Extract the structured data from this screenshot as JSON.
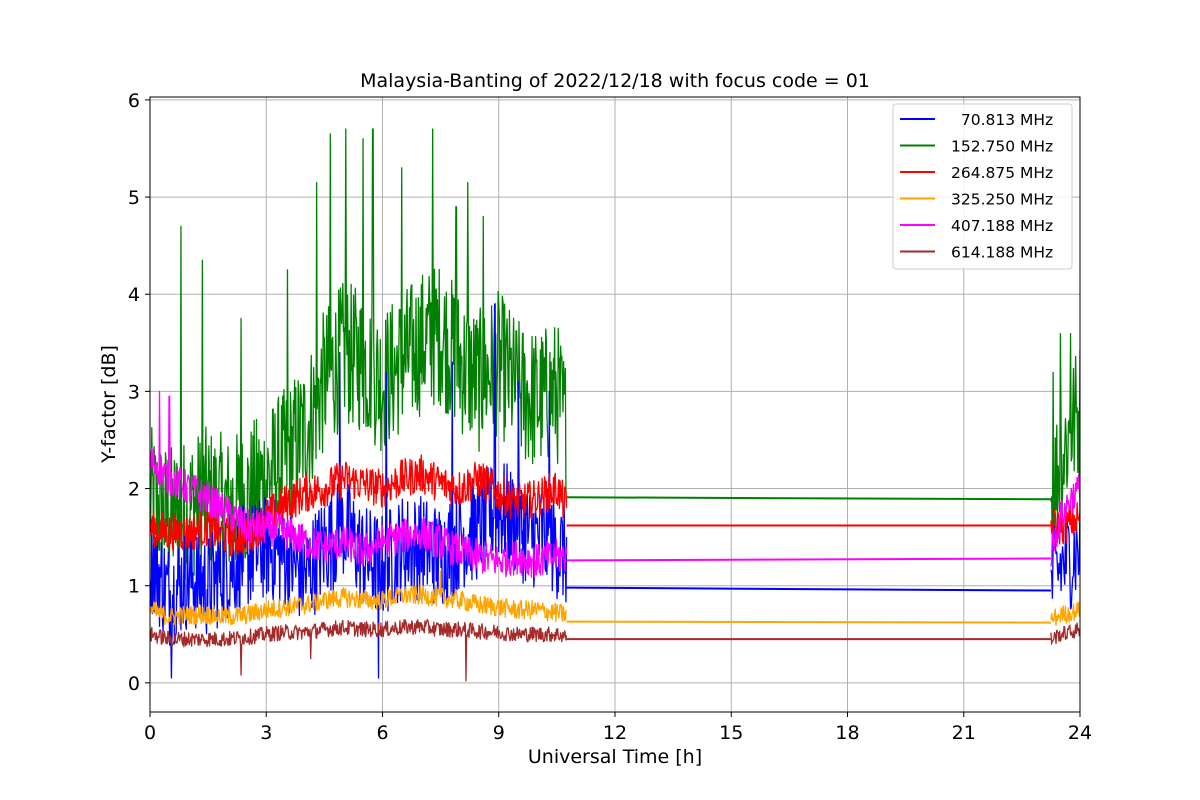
{
  "chart_data": {
    "type": "line",
    "title": "Malaysia-Banting of 2022/12/18 with focus code = 01",
    "xlabel": "Universal Time [h]",
    "ylabel": "Y-factor [dB]",
    "xlim": [
      0,
      24
    ],
    "ylim": [
      -0.3,
      6.03
    ],
    "xticks": [
      "0",
      "3",
      "6",
      "9",
      "12",
      "15",
      "18",
      "21",
      "24"
    ],
    "yticks": [
      "0",
      "1",
      "2",
      "3",
      "4",
      "5",
      "6"
    ],
    "grid": true,
    "legend_position": "top-right",
    "data_gap_hours": [
      10.75,
      23.25
    ],
    "series": [
      {
        "name": "  70.813 MHz",
        "color": "#0000ff",
        "points": [
          [
            0,
            1.3
          ],
          [
            0.5,
            0.9
          ],
          [
            1,
            1.1
          ],
          [
            1.5,
            1.0
          ],
          [
            2,
            1.2
          ],
          [
            2.5,
            1.3
          ],
          [
            3,
            1.4
          ],
          [
            3.5,
            1.3
          ],
          [
            4,
            1.1
          ],
          [
            4.5,
            1.4
          ],
          [
            5,
            1.6
          ],
          [
            5.5,
            1.3
          ],
          [
            6,
            1.2
          ],
          [
            6.5,
            1.4
          ],
          [
            7,
            1.4
          ],
          [
            7.5,
            1.3
          ],
          [
            8,
            1.5
          ],
          [
            8.5,
            1.6
          ],
          [
            9,
            1.8
          ],
          [
            9.5,
            1.6
          ],
          [
            10,
            1.5
          ],
          [
            10.5,
            1.4
          ],
          [
            10.75,
            1.3
          ]
        ],
        "gap_line": [
          [
            10.75,
            0.98
          ],
          [
            23.25,
            0.95
          ]
        ],
        "after": [
          [
            23.25,
            1.0
          ],
          [
            23.5,
            1.2
          ],
          [
            23.75,
            1.3
          ],
          [
            24,
            1.4
          ]
        ],
        "noise_amplitude": 0.55,
        "spikes": [
          [
            0.55,
            0.05
          ],
          [
            4.9,
            3.4
          ],
          [
            5.9,
            0.05
          ],
          [
            6.1,
            3.2
          ],
          [
            7.8,
            3.3
          ],
          [
            8.9,
            3.9
          ],
          [
            9.5,
            3.1
          ],
          [
            10.3,
            3.0
          ]
        ]
      },
      {
        "name": "152.750 MHz",
        "color": "#008000",
        "points": [
          [
            0,
            1.9
          ],
          [
            0.5,
            1.7
          ],
          [
            1,
            1.8
          ],
          [
            1.5,
            1.9
          ],
          [
            2,
            1.8
          ],
          [
            2.5,
            1.9
          ],
          [
            3,
            2.1
          ],
          [
            3.5,
            2.3
          ],
          [
            4,
            2.6
          ],
          [
            4.5,
            3.1
          ],
          [
            5,
            3.4
          ],
          [
            5.5,
            3.3
          ],
          [
            6,
            3.1
          ],
          [
            6.5,
            3.3
          ],
          [
            7,
            3.5
          ],
          [
            7.5,
            3.6
          ],
          [
            8,
            3.3
          ],
          [
            8.5,
            3.1
          ],
          [
            9,
            3.3
          ],
          [
            9.5,
            3.0
          ],
          [
            10,
            2.9
          ],
          [
            10.5,
            3.0
          ],
          [
            10.75,
            2.6
          ]
        ],
        "gap_line": [
          [
            10.75,
            1.91
          ],
          [
            23.25,
            1.89
          ]
        ],
        "after": [
          [
            23.25,
            1.9
          ],
          [
            23.5,
            2.3
          ],
          [
            23.75,
            2.6
          ],
          [
            24,
            2.8
          ]
        ],
        "noise_amplitude": 0.75,
        "spikes": [
          [
            0.8,
            4.7
          ],
          [
            1.35,
            4.35
          ],
          [
            2.35,
            3.75
          ],
          [
            3.55,
            4.25
          ],
          [
            4.3,
            5.15
          ],
          [
            4.65,
            5.65
          ],
          [
            5.05,
            5.7
          ],
          [
            5.5,
            5.6
          ],
          [
            5.75,
            5.7
          ],
          [
            6.5,
            5.3
          ],
          [
            7.3,
            5.7
          ],
          [
            7.9,
            4.9
          ],
          [
            8.2,
            5.15
          ],
          [
            8.6,
            4.8
          ],
          [
            23.3,
            3.2
          ],
          [
            23.5,
            3.6
          ],
          [
            23.75,
            3.6
          ]
        ]
      },
      {
        "name": "264.875 MHz",
        "color": "#ff0000",
        "points": [
          [
            0,
            1.6
          ],
          [
            0.5,
            1.55
          ],
          [
            1,
            1.55
          ],
          [
            1.5,
            1.6
          ],
          [
            2,
            1.5
          ],
          [
            2.5,
            1.5
          ],
          [
            3,
            1.7
          ],
          [
            3.5,
            1.85
          ],
          [
            4,
            1.95
          ],
          [
            4.5,
            2.0
          ],
          [
            5,
            2.1
          ],
          [
            5.5,
            2.05
          ],
          [
            6,
            2.0
          ],
          [
            6.5,
            2.1
          ],
          [
            7,
            2.15
          ],
          [
            7.5,
            2.05
          ],
          [
            8,
            2.0
          ],
          [
            8.5,
            2.1
          ],
          [
            9,
            1.95
          ],
          [
            9.5,
            1.85
          ],
          [
            10,
            1.9
          ],
          [
            10.5,
            2.0
          ],
          [
            10.75,
            1.8
          ]
        ],
        "gap_line": [
          [
            10.75,
            1.62
          ],
          [
            23.25,
            1.62
          ]
        ],
        "after": [
          [
            23.25,
            1.62
          ],
          [
            23.5,
            1.6
          ],
          [
            23.75,
            1.65
          ],
          [
            24,
            1.7
          ]
        ],
        "noise_amplitude": 0.2,
        "spikes": []
      },
      {
        "name": "325.250 MHz",
        "color": "#ffa500",
        "points": [
          [
            0,
            0.75
          ],
          [
            0.5,
            0.68
          ],
          [
            1,
            0.7
          ],
          [
            1.5,
            0.7
          ],
          [
            2,
            0.68
          ],
          [
            2.5,
            0.7
          ],
          [
            3,
            0.75
          ],
          [
            3.5,
            0.78
          ],
          [
            4,
            0.8
          ],
          [
            4.5,
            0.85
          ],
          [
            5,
            0.88
          ],
          [
            5.5,
            0.85
          ],
          [
            6,
            0.85
          ],
          [
            6.5,
            0.9
          ],
          [
            7,
            0.9
          ],
          [
            7.5,
            0.88
          ],
          [
            8,
            0.85
          ],
          [
            8.5,
            0.8
          ],
          [
            9,
            0.78
          ],
          [
            9.5,
            0.75
          ],
          [
            10,
            0.75
          ],
          [
            10.5,
            0.72
          ],
          [
            10.75,
            0.7
          ]
        ],
        "gap_line": [
          [
            10.75,
            0.63
          ],
          [
            23.25,
            0.62
          ]
        ],
        "after": [
          [
            23.25,
            0.65
          ],
          [
            23.5,
            0.7
          ],
          [
            23.75,
            0.72
          ],
          [
            24,
            0.75
          ]
        ],
        "noise_amplitude": 0.1,
        "spikes": [
          [
            7.5,
            1.15
          ]
        ]
      },
      {
        "name": "407.188 MHz",
        "color": "#ff00ff",
        "points": [
          [
            0,
            2.3
          ],
          [
            0.5,
            2.1
          ],
          [
            1,
            2.0
          ],
          [
            1.5,
            1.9
          ],
          [
            2,
            1.75
          ],
          [
            2.5,
            1.6
          ],
          [
            3,
            1.6
          ],
          [
            3.5,
            1.55
          ],
          [
            4,
            1.45
          ],
          [
            4.5,
            1.4
          ],
          [
            5,
            1.45
          ],
          [
            5.5,
            1.35
          ],
          [
            6,
            1.45
          ],
          [
            6.5,
            1.5
          ],
          [
            7,
            1.55
          ],
          [
            7.5,
            1.45
          ],
          [
            8,
            1.35
          ],
          [
            8.5,
            1.3
          ],
          [
            9,
            1.25
          ],
          [
            9.5,
            1.3
          ],
          [
            10,
            1.25
          ],
          [
            10.5,
            1.3
          ],
          [
            10.75,
            1.3
          ]
        ],
        "gap_line": [
          [
            10.75,
            1.26
          ],
          [
            23.25,
            1.28
          ]
        ],
        "after": [
          [
            23.25,
            1.35
          ],
          [
            23.5,
            1.7
          ],
          [
            23.75,
            1.9
          ],
          [
            24,
            2.0
          ]
        ],
        "noise_amplitude": 0.18,
        "spikes": [
          [
            0.25,
            3.0
          ],
          [
            0.5,
            2.95
          ]
        ]
      },
      {
        "name": "614.188 MHz",
        "color": "#a52a2a",
        "points": [
          [
            0,
            0.5
          ],
          [
            0.5,
            0.45
          ],
          [
            1,
            0.45
          ],
          [
            1.5,
            0.45
          ],
          [
            2,
            0.45
          ],
          [
            2.5,
            0.47
          ],
          [
            3,
            0.5
          ],
          [
            3.5,
            0.52
          ],
          [
            4,
            0.52
          ],
          [
            4.5,
            0.55
          ],
          [
            5,
            0.57
          ],
          [
            5.5,
            0.55
          ],
          [
            6,
            0.55
          ],
          [
            6.5,
            0.57
          ],
          [
            7,
            0.58
          ],
          [
            7.5,
            0.55
          ],
          [
            8,
            0.55
          ],
          [
            8.5,
            0.53
          ],
          [
            9,
            0.52
          ],
          [
            9.5,
            0.5
          ],
          [
            10,
            0.5
          ],
          [
            10.5,
            0.5
          ],
          [
            10.75,
            0.48
          ]
        ],
        "gap_line": [
          [
            10.75,
            0.45
          ],
          [
            23.25,
            0.45
          ]
        ],
        "after": [
          [
            23.25,
            0.45
          ],
          [
            23.5,
            0.5
          ],
          [
            23.75,
            0.52
          ],
          [
            24,
            0.55
          ]
        ],
        "noise_amplitude": 0.08,
        "spikes": [
          [
            2.35,
            0.08
          ],
          [
            4.15,
            0.25
          ],
          [
            8.15,
            0.02
          ]
        ]
      }
    ]
  }
}
